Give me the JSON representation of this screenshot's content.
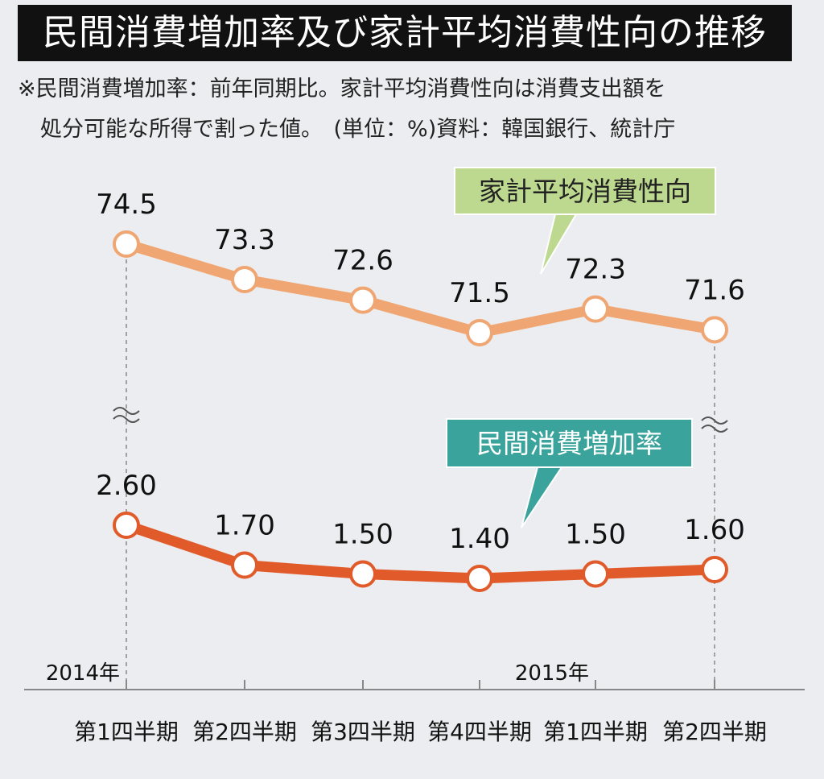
{
  "title": "民間消費増加率及び家計平均消費性向の推移",
  "note_line1": "※民間消費増加率：前年同期比。家計平均消費性向は消費支出額を",
  "note_line2": "処分可能な所得で割った値。　(単位：%)資料：韓国銀行、統計庁",
  "chart_data": {
    "type": "line",
    "categories": [
      "第1四半期",
      "第2四半期",
      "第3四半期",
      "第4四半期",
      "第1四半期",
      "第2四半期"
    ],
    "year_labels": [
      {
        "label": "2014年",
        "category_index": 0
      },
      {
        "label": "2015年",
        "category_index": 4
      }
    ],
    "series": [
      {
        "name": "家計平均消費性向",
        "values": [
          74.5,
          73.3,
          72.6,
          71.5,
          72.3,
          71.6
        ],
        "labels": [
          "74.5",
          "73.3",
          "72.6",
          "71.5",
          "72.3",
          "71.6"
        ],
        "color": "#f0a672",
        "callout_bg": "#bcd98f",
        "callout_text_color": "#222222"
      },
      {
        "name": "民間消費増加率",
        "values": [
          2.6,
          1.7,
          1.5,
          1.4,
          1.5,
          1.6
        ],
        "labels": [
          "2.60",
          "1.70",
          "1.50",
          "1.40",
          "1.50",
          "1.60"
        ],
        "color": "#e05a2a",
        "callout_bg": "#3aa39b",
        "callout_text_color": "#ffffff"
      }
    ],
    "axis_break": true
  }
}
